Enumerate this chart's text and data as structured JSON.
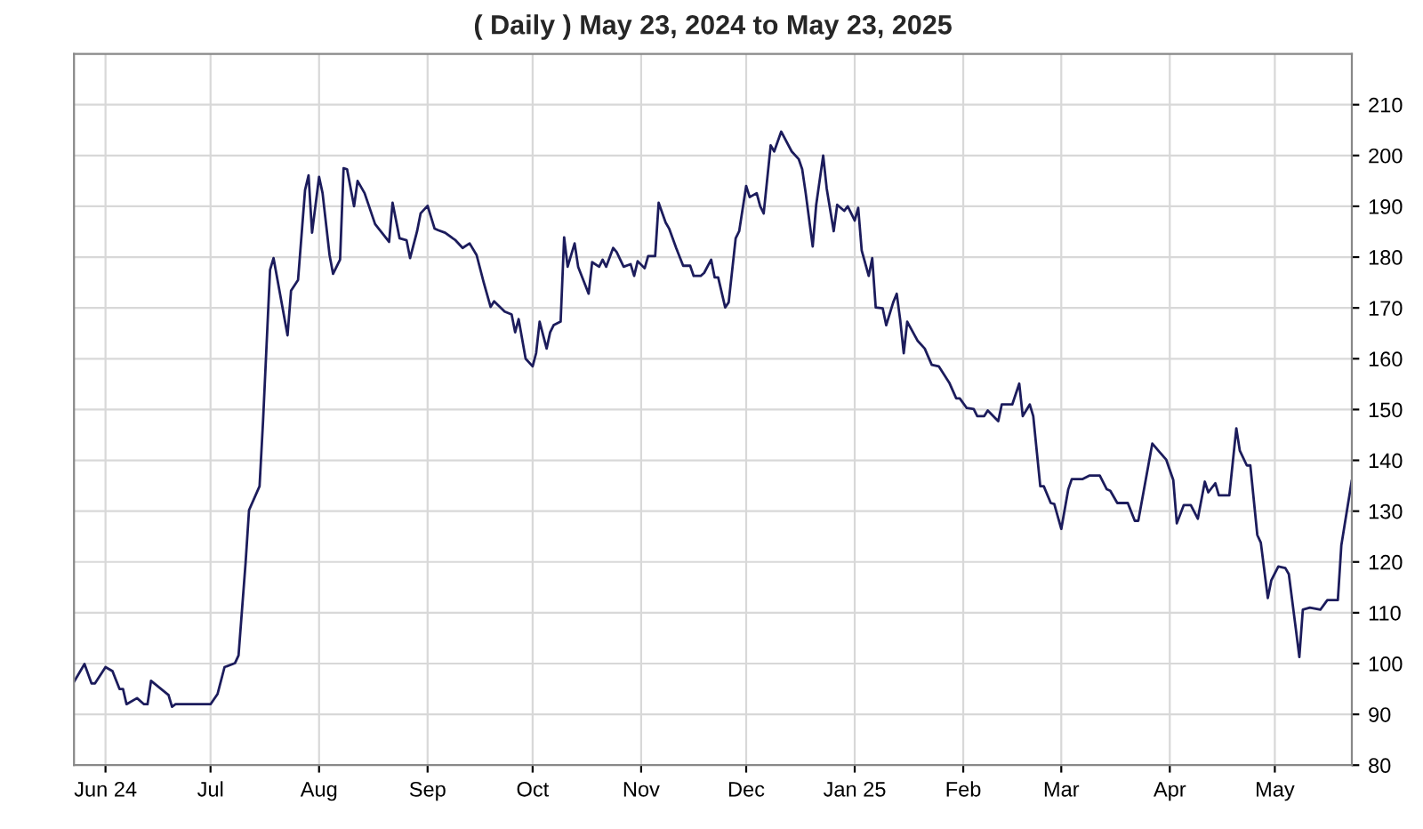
{
  "chart_data": {
    "type": "line",
    "title": "( Daily ) May 23, 2024 to May 23, 2025",
    "series": [
      {
        "color": "#1c1c5c",
        "x": [
          "2024-05-23",
          "2024-05-26",
          "2024-05-28",
          "2024-05-29",
          "2024-06-01",
          "2024-06-03",
          "2024-06-05",
          "2024-06-06",
          "2024-06-07",
          "2024-06-10",
          "2024-06-12",
          "2024-06-13",
          "2024-06-14",
          "2024-06-19",
          "2024-06-20",
          "2024-06-21",
          "2024-07-01",
          "2024-07-03",
          "2024-07-05",
          "2024-07-08",
          "2024-07-09",
          "2024-07-11",
          "2024-07-12",
          "2024-07-15",
          "2024-07-16",
          "2024-07-18",
          "2024-07-19",
          "2024-07-23",
          "2024-07-24",
          "2024-07-26",
          "2024-07-28",
          "2024-07-29",
          "2024-07-30",
          "2024-08-01",
          "2024-08-02",
          "2024-08-04",
          "2024-08-05",
          "2024-08-07",
          "2024-08-08",
          "2024-08-09",
          "2024-08-11",
          "2024-08-12",
          "2024-08-14",
          "2024-08-17",
          "2024-08-21",
          "2024-08-22",
          "2024-08-24",
          "2024-08-26",
          "2024-08-27",
          "2024-08-29",
          "2024-08-30",
          "2024-09-01",
          "2024-09-03",
          "2024-09-04",
          "2024-09-06",
          "2024-09-09",
          "2024-09-11",
          "2024-09-13",
          "2024-09-15",
          "2024-09-17",
          "2024-09-19",
          "2024-09-20",
          "2024-09-23",
          "2024-09-25",
          "2024-09-26",
          "2024-09-27",
          "2024-09-29",
          "2024-10-01",
          "2024-10-02",
          "2024-10-03",
          "2024-10-05",
          "2024-10-06",
          "2024-10-07",
          "2024-10-09",
          "2024-10-10",
          "2024-10-11",
          "2024-10-13",
          "2024-10-14",
          "2024-10-17",
          "2024-10-18",
          "2024-10-20",
          "2024-10-21",
          "2024-10-22",
          "2024-10-24",
          "2024-10-25",
          "2024-10-27",
          "2024-10-29",
          "2024-10-30",
          "2024-10-31",
          "2024-11-02",
          "2024-11-03",
          "2024-11-05",
          "2024-11-06",
          "2024-11-08",
          "2024-11-09",
          "2024-11-11",
          "2024-11-13",
          "2024-11-15",
          "2024-11-16",
          "2024-11-18",
          "2024-11-19",
          "2024-11-21",
          "2024-11-22",
          "2024-11-23",
          "2024-11-25",
          "2024-11-26",
          "2024-11-28",
          "2024-11-29",
          "2024-12-01",
          "2024-12-02",
          "2024-12-04",
          "2024-12-05",
          "2024-12-06",
          "2024-12-08",
          "2024-12-09",
          "2024-12-11",
          "2024-12-14",
          "2024-12-16",
          "2024-12-17",
          "2024-12-18",
          "2024-12-20",
          "2024-12-21",
          "2024-12-23",
          "2024-12-24",
          "2024-12-26",
          "2024-12-27",
          "2024-12-29",
          "2024-12-30",
          "2025-01-01",
          "2025-01-02",
          "2025-01-03",
          "2025-01-05",
          "2025-01-06",
          "2025-01-07",
          "2025-01-09",
          "2025-01-10",
          "2025-01-12",
          "2025-01-13",
          "2025-01-14",
          "2025-01-15",
          "2025-01-16",
          "2025-01-19",
          "2025-01-21",
          "2025-01-23",
          "2025-01-25",
          "2025-01-28",
          "2025-01-30",
          "2025-01-31",
          "2025-02-02",
          "2025-02-04",
          "2025-02-05",
          "2025-02-07",
          "2025-02-08",
          "2025-02-11",
          "2025-02-12",
          "2025-02-15",
          "2025-02-17",
          "2025-02-18",
          "2025-02-20",
          "2025-02-21",
          "2025-02-23",
          "2025-02-24",
          "2025-02-26",
          "2025-02-27",
          "2025-03-01",
          "2025-03-03",
          "2025-03-04",
          "2025-03-07",
          "2025-03-09",
          "2025-03-12",
          "2025-03-14",
          "2025-03-15",
          "2025-03-17",
          "2025-03-20",
          "2025-03-22",
          "2025-03-23",
          "2025-03-27",
          "2025-03-29",
          "2025-03-31",
          "2025-04-02",
          "2025-04-03",
          "2025-04-05",
          "2025-04-07",
          "2025-04-09",
          "2025-04-11",
          "2025-04-12",
          "2025-04-14",
          "2025-04-15",
          "2025-04-18",
          "2025-04-20",
          "2025-04-21",
          "2025-04-23",
          "2025-04-24",
          "2025-04-26",
          "2025-04-27",
          "2025-04-29",
          "2025-04-30",
          "2025-05-02",
          "2025-05-04",
          "2025-05-05",
          "2025-05-07",
          "2025-05-08",
          "2025-05-09",
          "2025-05-11",
          "2025-05-14",
          "2025-05-16",
          "2025-05-19",
          "2025-05-20",
          "2025-05-23"
        ],
        "values": [
          96.4,
          99.9,
          96.1,
          96.1,
          99.3,
          98.5,
          95.0,
          95.0,
          92.0,
          93.2,
          92.0,
          92.0,
          96.6,
          93.8,
          91.5,
          92.0,
          92.0,
          94.0,
          99.3,
          100.1,
          101.6,
          119.7,
          130.2,
          134.9,
          147.7,
          177.5,
          179.8,
          164.6,
          173.4,
          175.5,
          193.2,
          196.1,
          184.8,
          195.8,
          192.6,
          180.4,
          176.7,
          179.5,
          197.5,
          197.3,
          190.0,
          195.0,
          192.6,
          186.5,
          183.0,
          190.7,
          183.7,
          183.3,
          179.8,
          185.1,
          188.6,
          190.1,
          185.6,
          185.3,
          184.8,
          183.3,
          181.8,
          182.7,
          180.4,
          175.1,
          170.2,
          171.3,
          169.3,
          168.7,
          165.2,
          167.8,
          160.0,
          158.5,
          161.1,
          167.3,
          162.0,
          165.2,
          166.6,
          167.3,
          183.9,
          178.1,
          182.7,
          178.1,
          172.8,
          179.0,
          178.1,
          179.5,
          178.1,
          181.8,
          181.0,
          178.1,
          178.6,
          176.3,
          179.2,
          177.8,
          180.2,
          180.2,
          190.7,
          186.8,
          185.6,
          181.8,
          178.3,
          178.3,
          176.3,
          176.3,
          176.9,
          179.5,
          176.0,
          176.0,
          170.1,
          171.1,
          183.7,
          185.1,
          194.0,
          191.8,
          192.6,
          190.0,
          188.6,
          202.0,
          200.8,
          204.7,
          200.8,
          199.3,
          197.3,
          192.6,
          182.1,
          190.3,
          200.0,
          193.5,
          185.1,
          190.3,
          189.1,
          190.0,
          187.2,
          189.7,
          181.3,
          176.3,
          179.8,
          170.1,
          169.9,
          166.6,
          171.1,
          172.8,
          167.6,
          161.1,
          167.3,
          163.5,
          162.0,
          158.8,
          158.5,
          155.3,
          152.2,
          152.2,
          150.3,
          150.1,
          148.7,
          148.7,
          149.8,
          147.7,
          151.0,
          151.0,
          155.1,
          148.7,
          151.0,
          148.7,
          134.9,
          134.9,
          131.6,
          131.4,
          126.5,
          134.3,
          136.3,
          136.3,
          137.0,
          137.0,
          134.3,
          134.0,
          131.6,
          131.6,
          128.1,
          128.1,
          143.3,
          141.7,
          140.1,
          136.1,
          127.6,
          131.2,
          131.2,
          128.5,
          135.8,
          133.7,
          135.5,
          133.1,
          133.1,
          146.3,
          141.9,
          139.0,
          139.0,
          125.3,
          123.8,
          112.9,
          116.4,
          119.1,
          118.8,
          117.6,
          106.8,
          101.3,
          110.6,
          111.0,
          110.6,
          112.5,
          112.5,
          123.3,
          136.1
        ]
      }
    ],
    "xlim": [
      "2024-05-23",
      "2025-05-23"
    ],
    "xticks": [
      {
        "value": "2024-06-01",
        "label": "Jun 24"
      },
      {
        "value": "2024-07-01",
        "label": "Jul"
      },
      {
        "value": "2024-08-01",
        "label": "Aug"
      },
      {
        "value": "2024-09-01",
        "label": "Sep"
      },
      {
        "value": "2024-10-01",
        "label": "Oct"
      },
      {
        "value": "2024-11-01",
        "label": "Nov"
      },
      {
        "value": "2024-12-01",
        "label": "Dec"
      },
      {
        "value": "2025-01-01",
        "label": "Jan 25"
      },
      {
        "value": "2025-02-01",
        "label": "Feb"
      },
      {
        "value": "2025-03-01",
        "label": "Mar"
      },
      {
        "value": "2025-04-01",
        "label": "Apr"
      },
      {
        "value": "2025-05-01",
        "label": "May"
      }
    ],
    "ylim": [
      80,
      220
    ],
    "yticks": [
      80,
      90,
      100,
      110,
      120,
      130,
      140,
      150,
      160,
      170,
      180,
      190,
      200,
      210
    ],
    "grid": true
  }
}
